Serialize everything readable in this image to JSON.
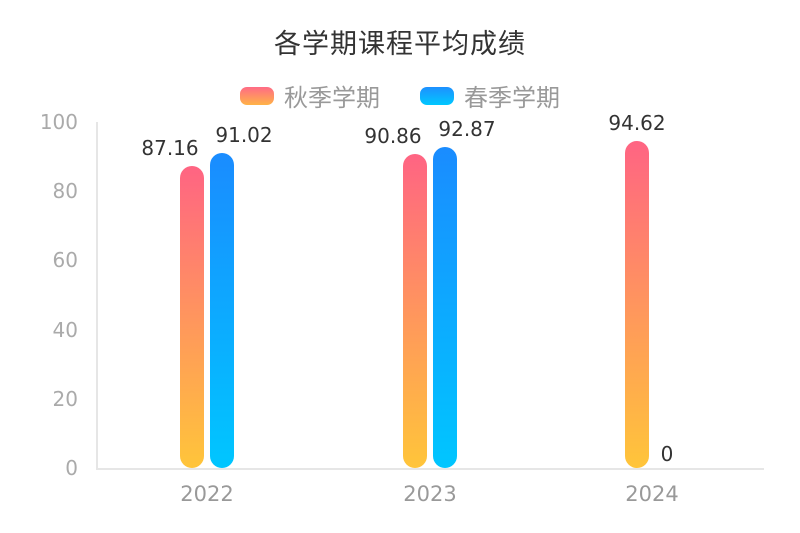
{
  "chart_data": {
    "type": "bar",
    "title": "各学期课程平均成绩",
    "categories": [
      "2022",
      "2023",
      "2024"
    ],
    "series": [
      {
        "name": "秋季学期",
        "values": [
          87.16,
          90.86,
          94.62
        ],
        "color_top": "#ff6483",
        "color_bottom": "#ffc53a"
      },
      {
        "name": "春季学期",
        "values": [
          91.02,
          92.87,
          0
        ],
        "color_top": "#1a8cff",
        "color_bottom": "#00c6ff"
      }
    ],
    "value_labels": {
      "autumn": [
        "87.16",
        "90.86",
        "94.62"
      ],
      "spring": [
        "91.02",
        "92.87",
        "0"
      ]
    },
    "xlabel": "",
    "ylabel": "",
    "ylim": [
      0,
      100
    ],
    "yticks": [
      "0",
      "20",
      "40",
      "60",
      "80",
      "100"
    ],
    "legend_position": "top",
    "grid": false
  },
  "legend": {
    "autumn": "秋季学期",
    "spring": "春季学期"
  }
}
